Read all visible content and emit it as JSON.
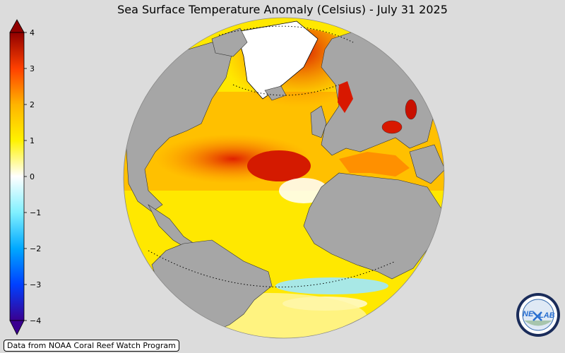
{
  "title": "Sea Surface Temperature Anomaly (Celsius) - July 31 2025",
  "credit": "Data from NOAA Coral Reef Watch Program",
  "logo": {
    "text_left": "NE",
    "text_right": "LAB"
  },
  "colorbar": {
    "min": -4,
    "max": 4,
    "ticks": [
      {
        "value": 4,
        "label": "4"
      },
      {
        "value": 3,
        "label": "3"
      },
      {
        "value": 2,
        "label": "2"
      },
      {
        "value": 1,
        "label": "1"
      },
      {
        "value": 0,
        "label": "0"
      },
      {
        "value": -1,
        "label": "−1"
      },
      {
        "value": -2,
        "label": "−2"
      },
      {
        "value": -3,
        "label": "−3"
      },
      {
        "value": -4,
        "label": "−4"
      }
    ],
    "colors": [
      "#3a0090",
      "#0040ff",
      "#00a8ff",
      "#80f0ff",
      "#ffffff",
      "#fff200",
      "#ffb400",
      "#ff4000",
      "#900000"
    ]
  },
  "map_colors": {
    "land": "#a6a6a6",
    "background": "#dcdcdc"
  }
}
